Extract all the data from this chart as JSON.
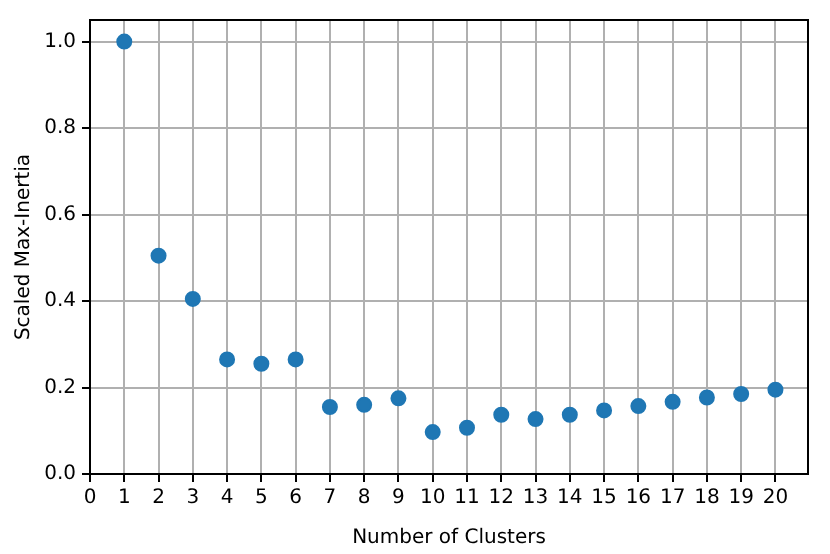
{
  "chart_data": {
    "type": "scatter",
    "xlabel": "Number of Clusters",
    "ylabel": "Scaled Max-Inertia",
    "x": [
      1,
      2,
      3,
      4,
      5,
      6,
      7,
      8,
      9,
      10,
      11,
      12,
      13,
      14,
      15,
      16,
      17,
      18,
      19,
      20
    ],
    "values": [
      1.0,
      0.505,
      0.405,
      0.265,
      0.255,
      0.265,
      0.155,
      0.16,
      0.175,
      0.097,
      0.107,
      0.137,
      0.127,
      0.137,
      0.147,
      0.157,
      0.167,
      0.177,
      0.185,
      0.195
    ],
    "color": "#1f77b4",
    "marker": "circle",
    "xlim": [
      0,
      20.95
    ],
    "xticks": [
      0,
      1,
      2,
      3,
      4,
      5,
      6,
      7,
      8,
      9,
      10,
      11,
      12,
      13,
      14,
      15,
      16,
      17,
      18,
      19,
      20
    ],
    "ylim": [
      0,
      1.05
    ],
    "yticks": [
      {
        "value": 0,
        "label": "0.0"
      },
      {
        "value": 0.2,
        "label": "0.2"
      },
      {
        "value": 0.4,
        "label": "0.4"
      },
      {
        "value": 0.6,
        "label": "0.6"
      },
      {
        "value": 0.8,
        "label": "0.8"
      },
      {
        "value": 1,
        "label": "1.0"
      }
    ],
    "grid": true
  }
}
